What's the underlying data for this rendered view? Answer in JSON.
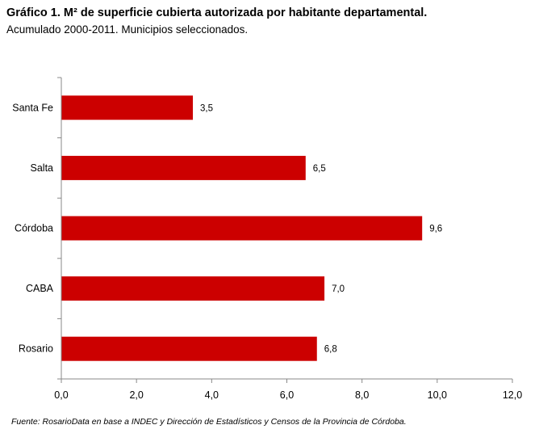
{
  "header": {
    "title": "Gráfico 1. M² de superficie cubierta autorizada por habitante departamental.",
    "subtitle": "Acumulado 2000-2011. Municipios seleccionados."
  },
  "footer": {
    "source": "Fuente: RosarioData en base a INDEC y Dirección de Estadísticos y Censos de la Provincia de Córdoba."
  },
  "chart_data": {
    "type": "bar",
    "orientation": "horizontal",
    "categories": [
      "Santa Fe",
      "Salta",
      "Córdoba",
      "CABA",
      "Rosario"
    ],
    "values": [
      3.5,
      6.5,
      9.6,
      7.0,
      6.8
    ],
    "value_labels": [
      "3,5",
      "6,5",
      "9,6",
      "7,0",
      "6,8"
    ],
    "xlim": [
      0,
      12
    ],
    "x_ticks": [
      0,
      2,
      4,
      6,
      8,
      10,
      12
    ],
    "x_tick_labels": [
      "0,0",
      "2,0",
      "4,0",
      "6,0",
      "8,0",
      "10,0",
      "12,0"
    ],
    "grid": false,
    "legend": "none",
    "bar_color": "#cc0000"
  }
}
